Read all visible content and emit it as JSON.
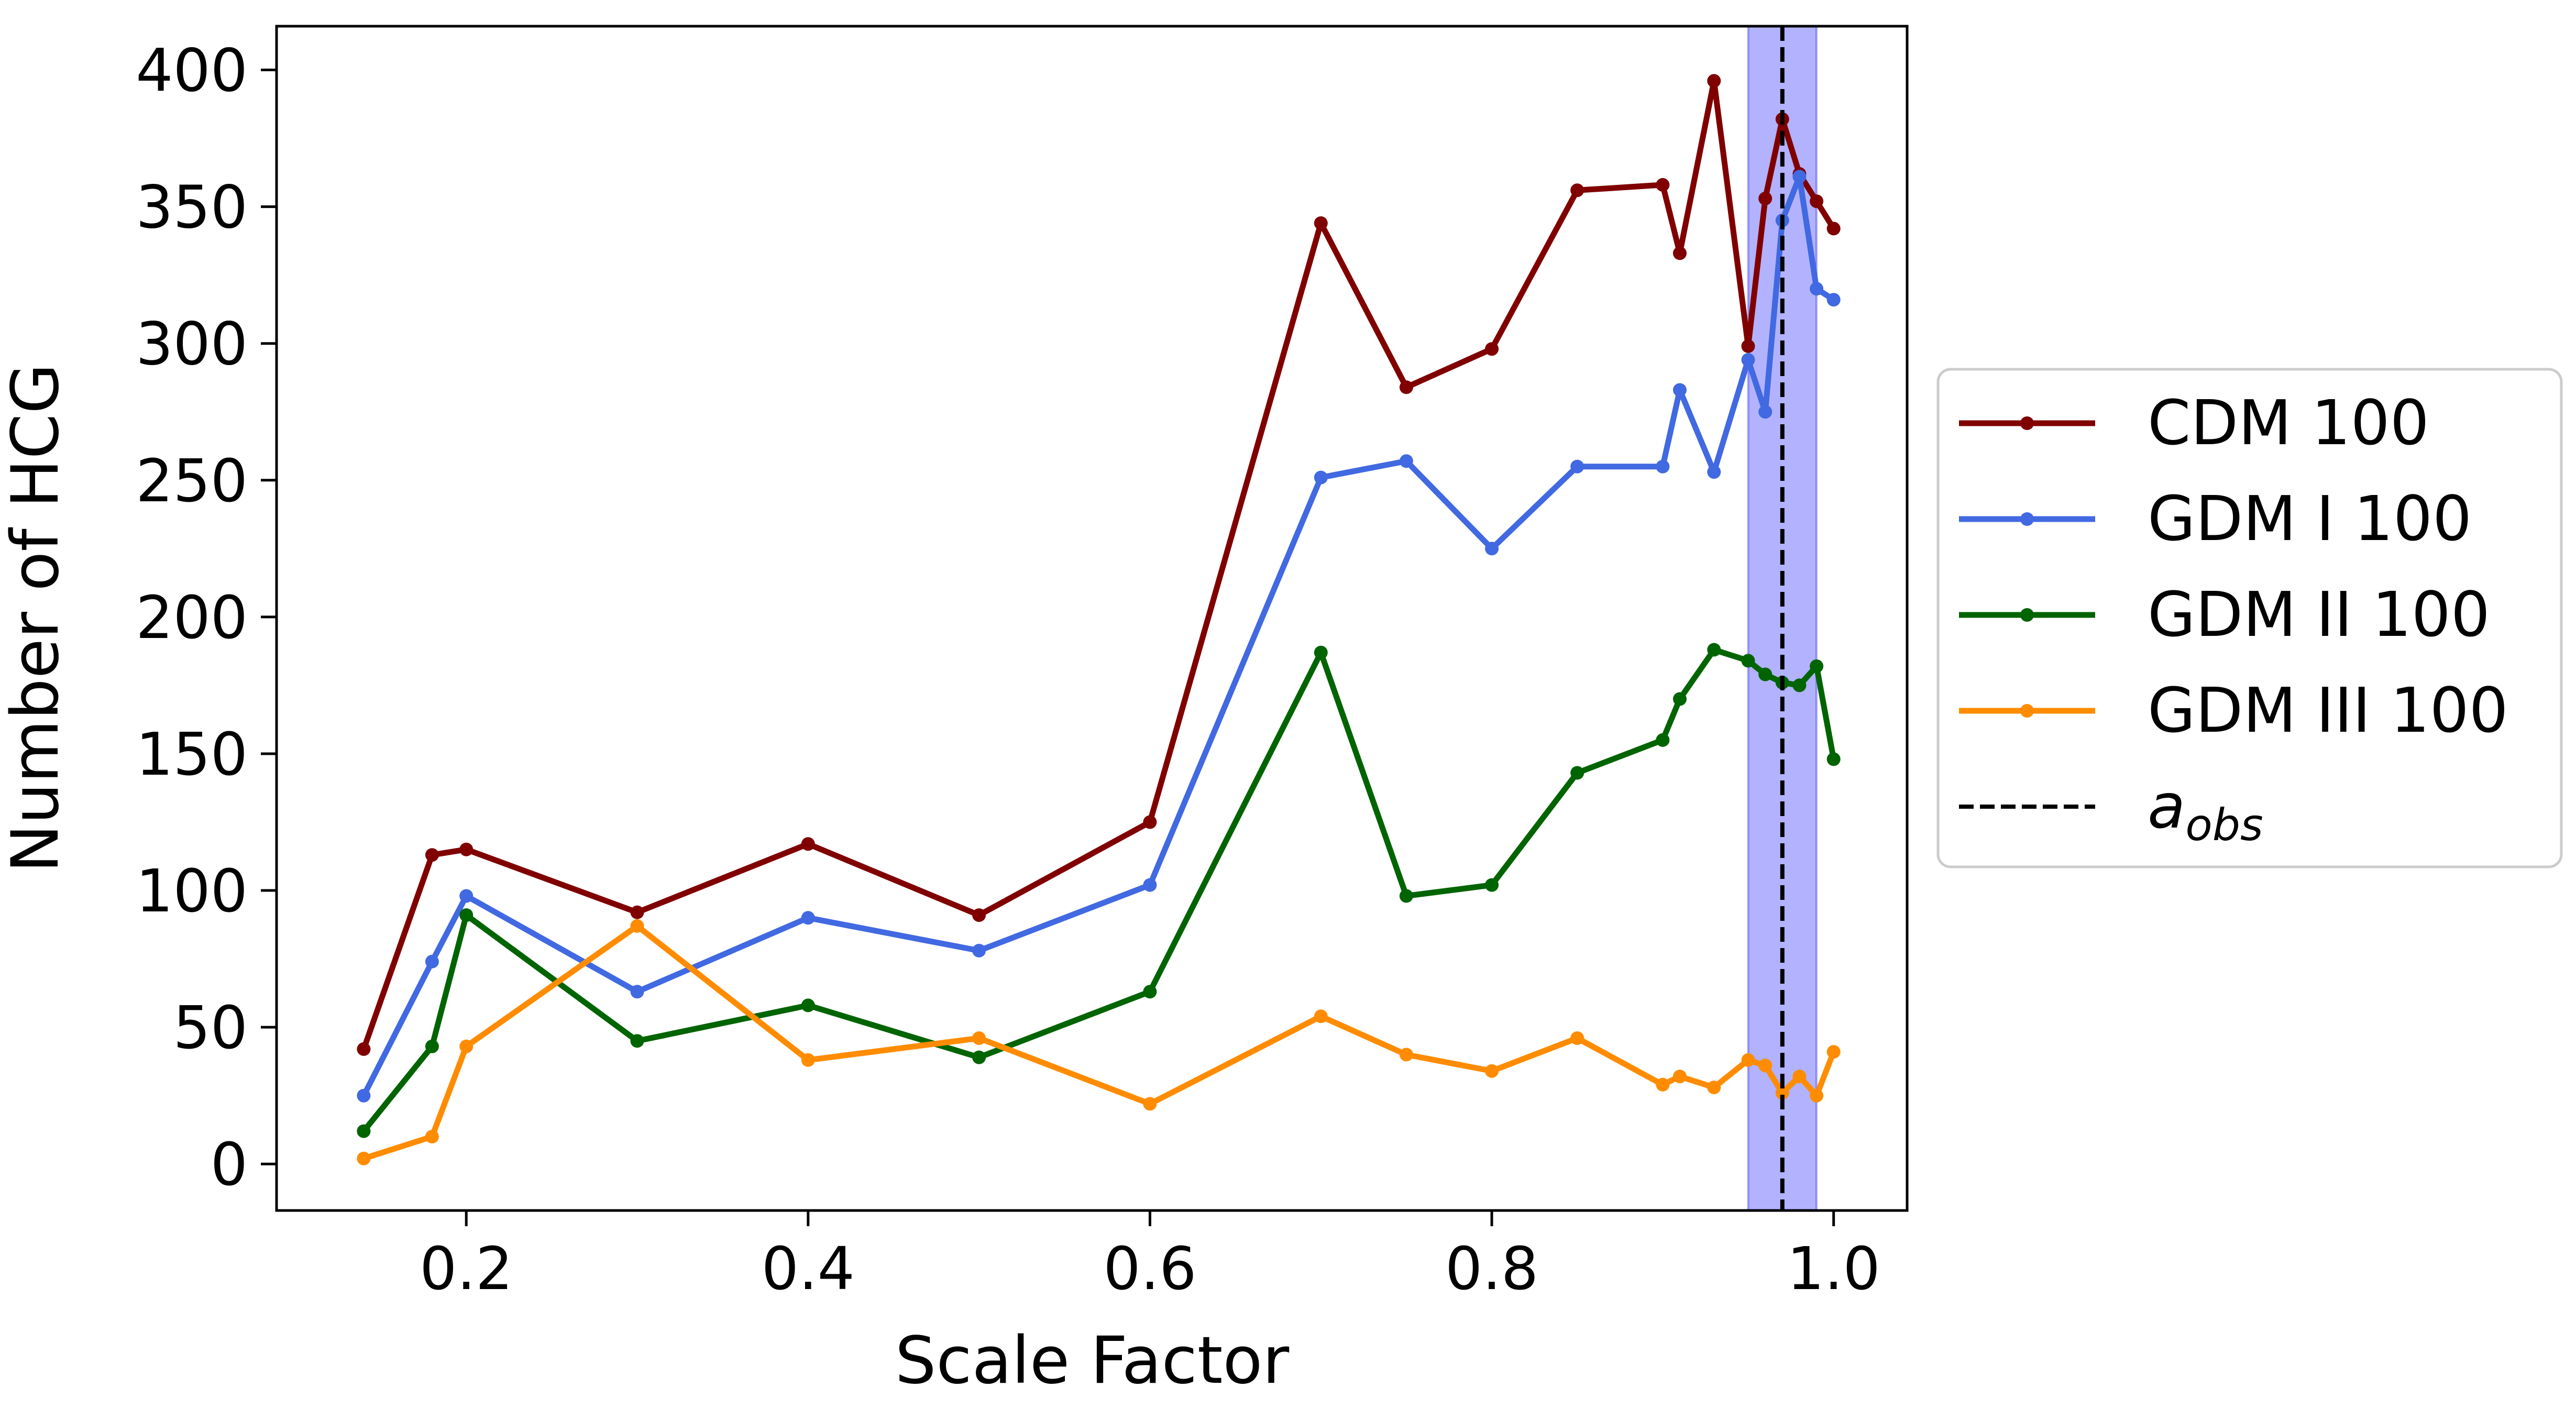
{
  "chart_data": {
    "type": "line",
    "title": "",
    "xlabel": "Scale Factor",
    "ylabel": "Number of HCG",
    "xlim": [
      0.089,
      1.043
    ],
    "ylim": [
      -17,
      416
    ],
    "xticks": [
      0.2,
      0.4,
      0.6,
      0.8,
      1.0
    ],
    "xtick_labels": [
      "0.2",
      "0.4",
      "0.6",
      "0.8",
      "1.0"
    ],
    "yticks": [
      0,
      50,
      100,
      150,
      200,
      250,
      300,
      350,
      400
    ],
    "ytick_labels": [
      "0",
      "50",
      "100",
      "150",
      "200",
      "250",
      "300",
      "350",
      "400"
    ],
    "grid": false,
    "legend_position": "outside-right",
    "x": [
      0.14,
      0.18,
      0.2,
      0.3,
      0.4,
      0.5,
      0.6,
      0.7,
      0.75,
      0.8,
      0.85,
      0.9,
      0.91,
      0.93,
      0.95,
      0.96,
      0.97,
      0.98,
      0.99,
      1.0
    ],
    "series": [
      {
        "name": "CDM 100",
        "color": "#800000",
        "values": [
          42,
          113,
          115,
          92,
          117,
          91,
          125,
          344,
          284,
          298,
          356,
          358,
          333,
          396,
          299,
          353,
          382,
          362,
          352,
          342
        ]
      },
      {
        "name": "GDM I 100",
        "color": "#4169e1",
        "values": [
          25,
          74,
          98,
          63,
          90,
          78,
          102,
          251,
          257,
          225,
          255,
          255,
          283,
          253,
          294,
          275,
          345,
          361,
          320,
          316
        ]
      },
      {
        "name": "GDM II 100",
        "color": "#006400",
        "values": [
          12,
          43,
          91,
          45,
          58,
          39,
          63,
          187,
          98,
          102,
          143,
          155,
          170,
          188,
          184,
          179,
          176,
          175,
          182,
          148
        ]
      },
      {
        "name": "GDM III 100",
        "color": "#ff8c00",
        "values": [
          2,
          10,
          43,
          87,
          38,
          46,
          22,
          54,
          40,
          34,
          46,
          29,
          32,
          28,
          38,
          36,
          26,
          32,
          25,
          41
        ]
      }
    ],
    "vline": {
      "name": "a_obs",
      "label_main": "a",
      "label_sub": "obs",
      "x": 0.97,
      "color": "#000000",
      "style": "dashed"
    },
    "band": {
      "x_start": 0.95,
      "x_end": 0.99,
      "color": "#0000ff",
      "opacity": 0.3
    }
  }
}
